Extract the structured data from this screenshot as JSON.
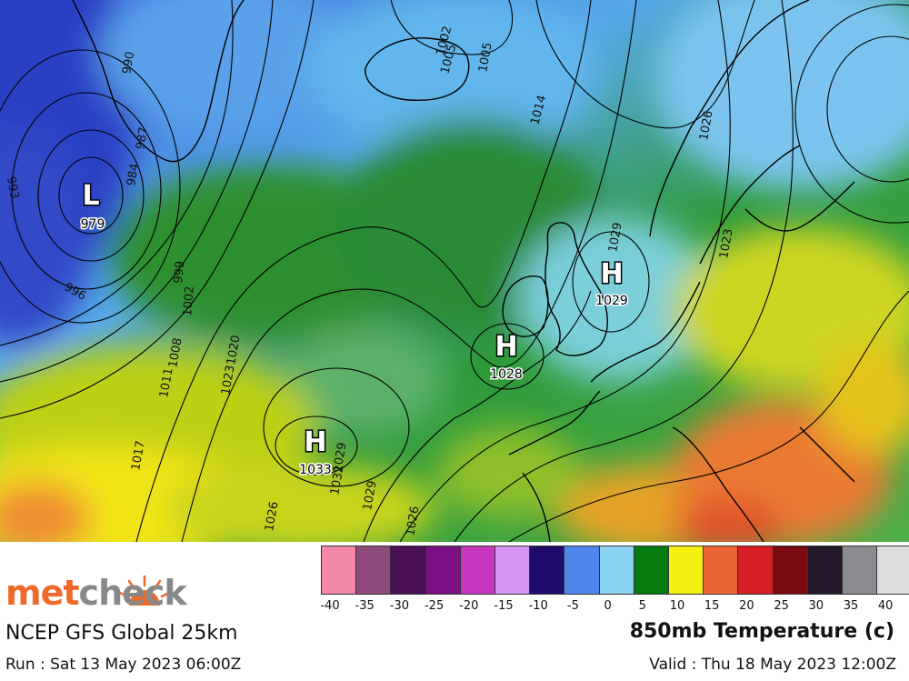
{
  "map": {
    "pressure_systems": [
      {
        "kind": "L",
        "value": "979"
      },
      {
        "kind": "H",
        "value": "1033"
      },
      {
        "kind": "H",
        "value": "1028"
      },
      {
        "kind": "H",
        "value": "1029"
      }
    ],
    "isobar_labels": [
      "990",
      "987",
      "984",
      "993",
      "996",
      "999",
      "1002",
      "1005",
      "1008",
      "1011",
      "1017",
      "1020",
      "1023",
      "1026",
      "1029",
      "1032",
      "1014",
      "1005",
      "1002",
      "1026",
      "1029",
      "1023",
      "1029",
      "1026"
    ]
  },
  "legend": {
    "labels": [
      "-40",
      "-35",
      "-30",
      "-25",
      "-20",
      "-15",
      "-10",
      "-5",
      "0",
      "5",
      "10",
      "15",
      "20",
      "25",
      "30",
      "35",
      "40"
    ],
    "colors": [
      "#f287a8",
      "#8e4a7a",
      "#4a0e55",
      "#7b1085",
      "#c637c0",
      "#d596f2",
      "#200a6b",
      "#4f86ec",
      "#8ad3f3",
      "#067a0e",
      "#f5ef10",
      "#eb6634",
      "#d61e24",
      "#7a0b10",
      "#24192a",
      "#8c8a8e",
      "#dcdcdc"
    ]
  },
  "footer": {
    "brand_left": "met",
    "brand_right": "check",
    "model": "NCEP GFS Global 25km",
    "run": "Run : Sat 13 May 2023 06:00Z",
    "variable": "850mb Temperature (c)",
    "valid": "Valid : Thu 18 May 2023 12:00Z"
  }
}
